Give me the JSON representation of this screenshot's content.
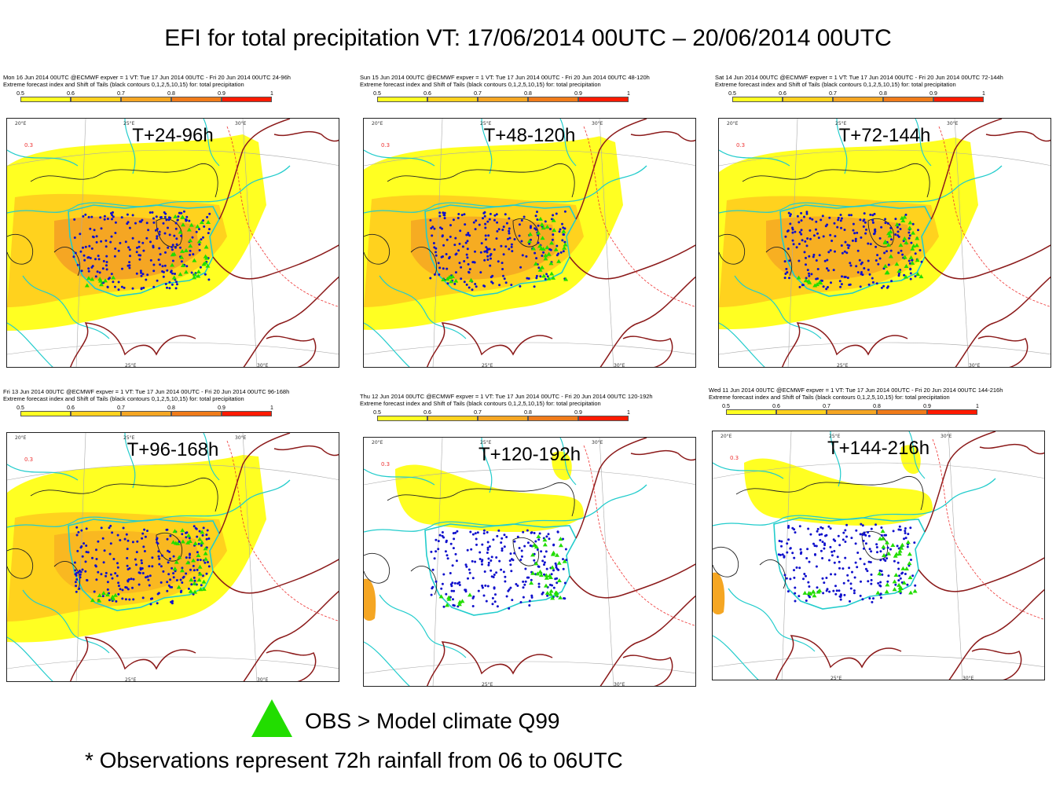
{
  "title": "EFI for total precipitation VT: 17/06/2014 00UTC – 20/06/2014 00UTC",
  "colorbar": {
    "ticks": [
      "0.5",
      "0.6",
      "0.7",
      "0.8",
      "0.9",
      "1"
    ],
    "colors": [
      "#ffff22",
      "#ffd21e",
      "#f5a623",
      "#f07b1a",
      "#ff1a00"
    ]
  },
  "header_line2": "Extreme forecast index and Shift of Tails (black contours 0,1,2,5,10,15) for: total precipitation",
  "panels": [
    {
      "header": "Mon 16 Jun 2014 00UTC @ECMWF expver = 1 VT: Tue 17 Jun 2014 00UTC - Fri 20 Jun 2014 00UTC  24-96h",
      "lead": "T+24-96h",
      "efi_level": 0.75
    },
    {
      "header": "Sun 15 Jun 2014 00UTC @ECMWF expver = 1 VT: Tue 17 Jun 2014 00UTC - Fri 20 Jun 2014 00UTC  48-120h",
      "lead": "T+48-120h",
      "efi_level": 0.72
    },
    {
      "header": "Sat 14 Jun 2014 00UTC @ECMWF expver = 1 VT: Tue 17 Jun 2014 00UTC - Fri 20 Jun 2014 00UTC  72-144h",
      "lead": "T+72-144h",
      "efi_level": 0.7
    },
    {
      "header": "Fri 13 Jun 2014 00UTC @ECMWF expver = 1 VT: Tue 17 Jun 2014 00UTC - Fri 20 Jun 2014 00UTC  96-168h",
      "lead": "T+96-168h",
      "efi_level": 0.65
    },
    {
      "header": "Thu 12 Jun 2014 00UTC @ECMWF expver = 1 VT: Tue 17 Jun 2014 00UTC - Fri 20 Jun 2014 00UTC  120-192h",
      "lead": "T+120-192h",
      "efi_level": 0.55
    },
    {
      "header": "Wed 11 Jun 2014 00UTC @ECMWF expver = 1 VT: Tue 17 Jun 2014 00UTC - Fri 20 Jun 2014 00UTC  144-216h",
      "lead": "T+144-216h",
      "efi_level": 0.52
    }
  ],
  "map_labels": {
    "lon_20": "20°E",
    "lon_25": "25°E",
    "lon_30": "30°E",
    "contour": "0.3"
  },
  "legend": {
    "text": "OBS > Model climate Q99",
    "color": "#22dd00"
  },
  "obs_color": "#1010cc",
  "footnote": "* Observations represent 72h rainfall from 06 to 06UTC"
}
